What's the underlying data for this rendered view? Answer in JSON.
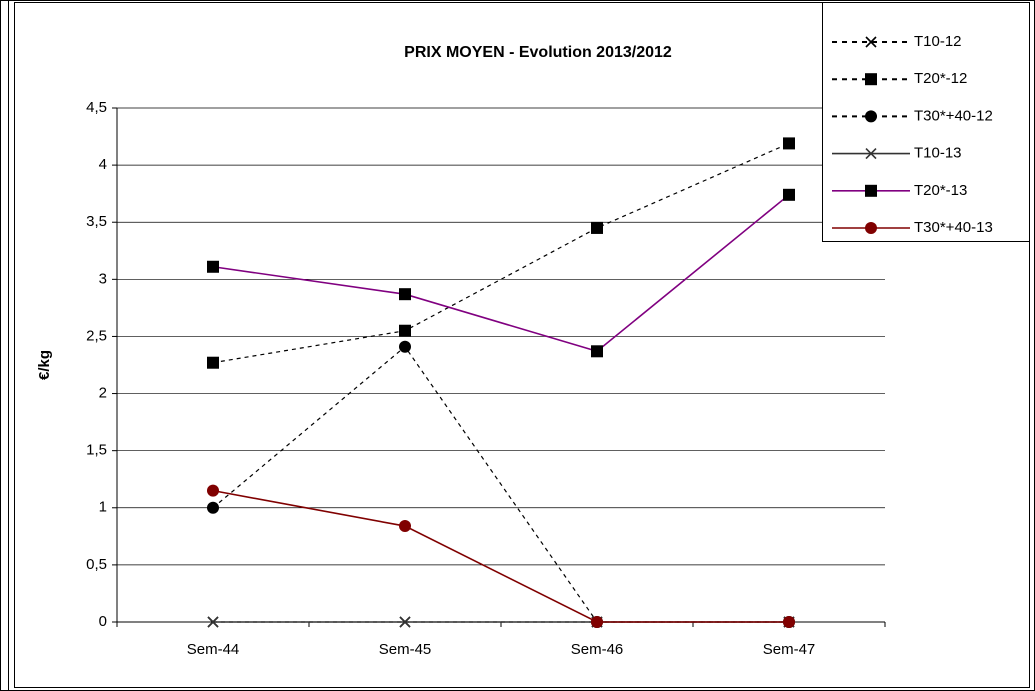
{
  "chart_data": {
    "type": "line",
    "title": "PRIX MOYEN - Evolution 2013/2012",
    "y_label": "€/kg",
    "categories": [
      "Sem-44",
      "Sem-45",
      "Sem-46",
      "Sem-47"
    ],
    "series": [
      {
        "name": "T10-12",
        "color": "#000000",
        "line_style": "dashed",
        "marker": "x",
        "values": [
          0,
          0,
          0,
          0
        ]
      },
      {
        "name": "T20*-12",
        "color": "#000000",
        "line_style": "dashed",
        "marker": "square",
        "values": [
          2.27,
          2.55,
          3.45,
          4.19
        ]
      },
      {
        "name": "T30*+40-12",
        "color": "#000000",
        "line_style": "dashed",
        "marker": "circle",
        "values": [
          1.0,
          2.41,
          0,
          0
        ]
      },
      {
        "name": "T10-13",
        "color": "#333333",
        "line_style": "solid",
        "marker": "x",
        "values": [
          0,
          0,
          0,
          0
        ]
      },
      {
        "name": "T20*-13",
        "color": "#800080",
        "line_style": "solid",
        "marker": "square",
        "values": [
          3.11,
          2.87,
          2.37,
          3.74
        ]
      },
      {
        "name": "T30*+40-13",
        "color": "#800000",
        "line_style": "solid",
        "marker": "circle",
        "values": [
          1.15,
          0.84,
          0,
          0
        ]
      }
    ],
    "ylim": [
      0,
      4.5
    ],
    "yticks": [
      0,
      {
        "value": 0.5,
        "label": "0,5"
      },
      1,
      {
        "value": 1.5,
        "label": "1,5"
      },
      2,
      {
        "value": 2.5,
        "label": "2,5"
      },
      3,
      {
        "value": 3.5,
        "label": "3,5"
      },
      4,
      {
        "value": 4.5,
        "label": "4,5"
      }
    ],
    "grid": true,
    "legend": "top-right"
  }
}
